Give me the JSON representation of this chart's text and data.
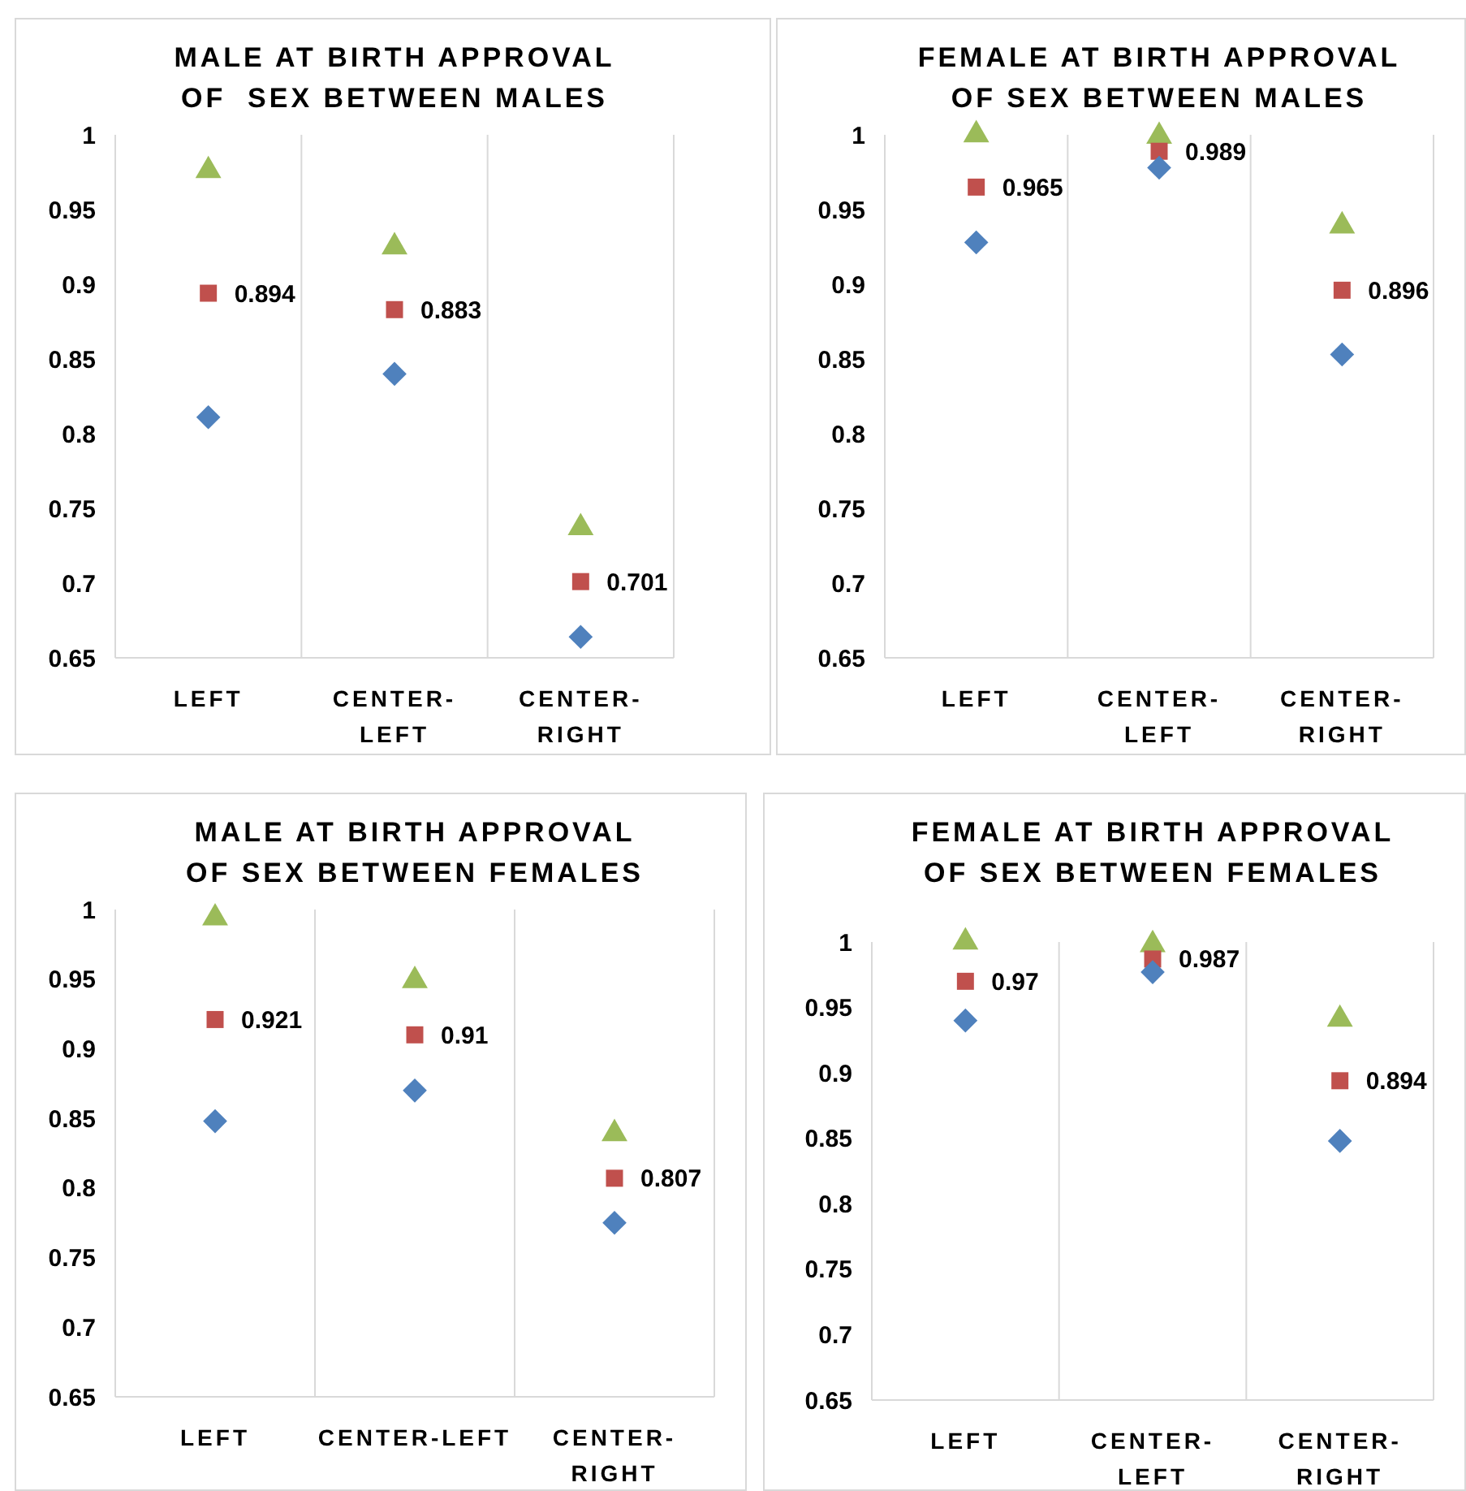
{
  "chart_data": [
    {
      "type": "scatter",
      "title": "MALE AT BIRTH APPROVAL\nOF  SEX BETWEEN MALES",
      "categories": [
        "LEFT",
        "CENTER-LEFT",
        "CENTER-RIGHT"
      ],
      "ylim": [
        0.65,
        1
      ],
      "yticks": [
        0.65,
        0.7,
        0.75,
        0.8,
        0.85,
        0.9,
        0.95,
        1
      ],
      "grid": "x",
      "series": [
        {
          "color": "#9bbb59",
          "marker": "triangle",
          "values": [
            0.976,
            0.925,
            0.737
          ]
        },
        {
          "color": "#c0504d",
          "marker": "square",
          "values": [
            0.894,
            0.883,
            0.701
          ],
          "value_labels": [
            "0.894",
            "0.883",
            "0.701"
          ]
        },
        {
          "color": "#4f81bd",
          "marker": "diamond",
          "values": [
            0.811,
            0.84,
            0.664
          ]
        }
      ]
    },
    {
      "type": "scatter",
      "title": "FEMALE AT BIRTH APPROVAL\nOF SEX BETWEEN MALES",
      "categories": [
        "LEFT",
        "CENTER-LEFT",
        "CENTER-RIGHT"
      ],
      "ylim": [
        0.65,
        1
      ],
      "yticks": [
        0.65,
        0.7,
        0.75,
        0.8,
        0.85,
        0.9,
        0.95,
        1
      ],
      "grid": "x",
      "series": [
        {
          "color": "#9bbb59",
          "marker": "triangle",
          "values": [
            1.0,
            0.999,
            0.939
          ]
        },
        {
          "color": "#c0504d",
          "marker": "square",
          "values": [
            0.965,
            0.989,
            0.896
          ],
          "value_labels": [
            "0.965",
            "0.989",
            "0.896"
          ]
        },
        {
          "color": "#4f81bd",
          "marker": "diamond",
          "values": [
            0.928,
            0.978,
            0.853
          ]
        }
      ]
    },
    {
      "type": "scatter",
      "title": "MALE AT BIRTH APPROVAL\nOF SEX BETWEEN FEMALES",
      "categories": [
        "LEFT",
        "CENTER-LEFT",
        "CENTER-RIGHT"
      ],
      "ylim": [
        0.65,
        1
      ],
      "yticks": [
        0.65,
        0.7,
        0.75,
        0.8,
        0.85,
        0.9,
        0.95,
        1
      ],
      "grid": "x",
      "series": [
        {
          "color": "#9bbb59",
          "marker": "triangle",
          "values": [
            0.994,
            0.949,
            0.839
          ]
        },
        {
          "color": "#c0504d",
          "marker": "square",
          "values": [
            0.921,
            0.91,
            0.807
          ],
          "value_labels": [
            "0.921",
            "0.91",
            "0.807"
          ]
        },
        {
          "color": "#4f81bd",
          "marker": "diamond",
          "values": [
            0.848,
            0.87,
            0.775
          ]
        }
      ]
    },
    {
      "type": "scatter",
      "title": "FEMALE AT BIRTH APPROVAL\nOF SEX BETWEEN FEMALES",
      "categories": [
        "LEFT",
        "CENTER-LEFT",
        "CENTER-RIGHT"
      ],
      "ylim": [
        0.65,
        1
      ],
      "yticks": [
        0.65,
        0.7,
        0.75,
        0.8,
        0.85,
        0.9,
        0.95,
        1
      ],
      "grid": "x",
      "series": [
        {
          "color": "#9bbb59",
          "marker": "triangle",
          "values": [
            1.0,
            0.998,
            0.941
          ]
        },
        {
          "color": "#c0504d",
          "marker": "square",
          "values": [
            0.97,
            0.987,
            0.894
          ],
          "value_labels": [
            "0.97",
            "0.987",
            "0.894"
          ]
        },
        {
          "color": "#4f81bd",
          "marker": "diamond",
          "values": [
            0.94,
            0.977,
            0.848
          ]
        }
      ]
    }
  ]
}
